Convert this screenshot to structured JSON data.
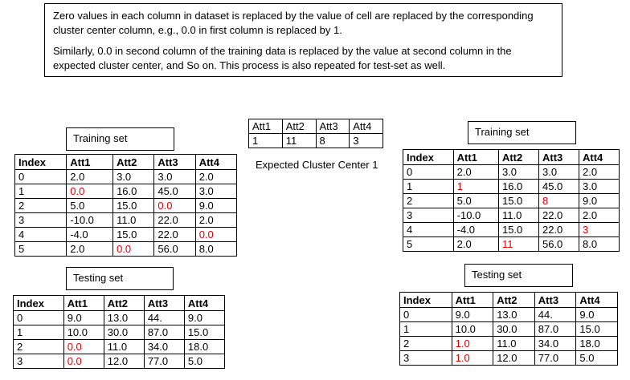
{
  "note": {
    "paragraph1": "Zero values in each column in dataset is replaced by the value of cell are replaced by the corresponding cluster center column, e.g., 0.0 in first column is replaced by 1.",
    "paragraph2": "Similarly, 0.0 in second column of the training data is replaced by the value at second column in the expected cluster center, and So on. This process is also repeated for test-set as well."
  },
  "cluster_center": {
    "headers": [
      "Att1",
      "Att2",
      "Att3",
      "Att4"
    ],
    "values": [
      "1",
      "11",
      "8",
      "3"
    ],
    "caption": "Expected Cluster Center 1"
  },
  "labels": {
    "training_left": "Training set",
    "testing_left": "Testing set",
    "training_right": "Training set",
    "testing_right": "Testing set"
  },
  "training_original": {
    "headers": [
      "Index",
      "Att1",
      "Att2",
      "Att3",
      "Att4"
    ],
    "rows": [
      [
        "0",
        "2.0",
        "3.0",
        "3.0",
        "2.0"
      ],
      [
        "1",
        "0.0",
        "16.0",
        "45.0",
        "3.0"
      ],
      [
        "2",
        "5.0",
        "15.0",
        "0.0",
        "9.0"
      ],
      [
        "3",
        "-10.0",
        "11.0",
        "22.0",
        "2.0"
      ],
      [
        "4",
        "-4.0",
        "15.0",
        "22.0",
        "0.0"
      ],
      [
        "5",
        "2.0",
        "0.0",
        "56.0",
        "8.0"
      ]
    ],
    "highlight": [
      [
        1,
        1
      ],
      [
        2,
        3
      ],
      [
        4,
        4
      ],
      [
        5,
        2
      ]
    ]
  },
  "testing_original": {
    "headers": [
      "Index",
      "Att1",
      "Att2",
      "Att3",
      "Att4"
    ],
    "rows": [
      [
        "0",
        "9.0",
        "13.0",
        "44.",
        "9.0"
      ],
      [
        "1",
        "10.0",
        "30.0",
        "87.0",
        "15.0"
      ],
      [
        "2",
        "0.0",
        "11.0",
        "34.0",
        "18.0"
      ],
      [
        "3",
        "0.0",
        "12.0",
        "77.0",
        "5.0"
      ]
    ],
    "highlight": [
      [
        2,
        1
      ],
      [
        3,
        1
      ]
    ]
  },
  "training_replaced": {
    "headers": [
      "Index",
      "Att1",
      "Att2",
      "Att3",
      "Att4"
    ],
    "rows": [
      [
        "0",
        "2.0",
        "3.0",
        "3.0",
        "2.0"
      ],
      [
        "1",
        "1",
        "16.0",
        "45.0",
        "3.0"
      ],
      [
        "2",
        "5.0",
        "15.0",
        "8",
        "9.0"
      ],
      [
        "3",
        "-10.0",
        "11.0",
        "22.0",
        "2.0"
      ],
      [
        "4",
        "-4.0",
        "15.0",
        "22.0",
        "3"
      ],
      [
        "5",
        "2.0",
        "11",
        "56.0",
        "8.0"
      ]
    ],
    "highlight": [
      [
        1,
        1
      ],
      [
        2,
        3
      ],
      [
        4,
        4
      ],
      [
        5,
        2
      ]
    ]
  },
  "testing_replaced": {
    "headers": [
      "Index",
      "Att1",
      "Att2",
      "Att3",
      "Att4"
    ],
    "rows": [
      [
        "0",
        "9.0",
        "13.0",
        "44.",
        "9.0"
      ],
      [
        "1",
        "10.0",
        "30.0",
        "87.0",
        "15.0"
      ],
      [
        "2",
        "1.0",
        "11.0",
        "34.0",
        "18.0"
      ],
      [
        "3",
        "1.0",
        "12.0",
        "77.0",
        "5.0"
      ]
    ],
    "highlight": [
      [
        2,
        1
      ],
      [
        3,
        1
      ]
    ]
  }
}
